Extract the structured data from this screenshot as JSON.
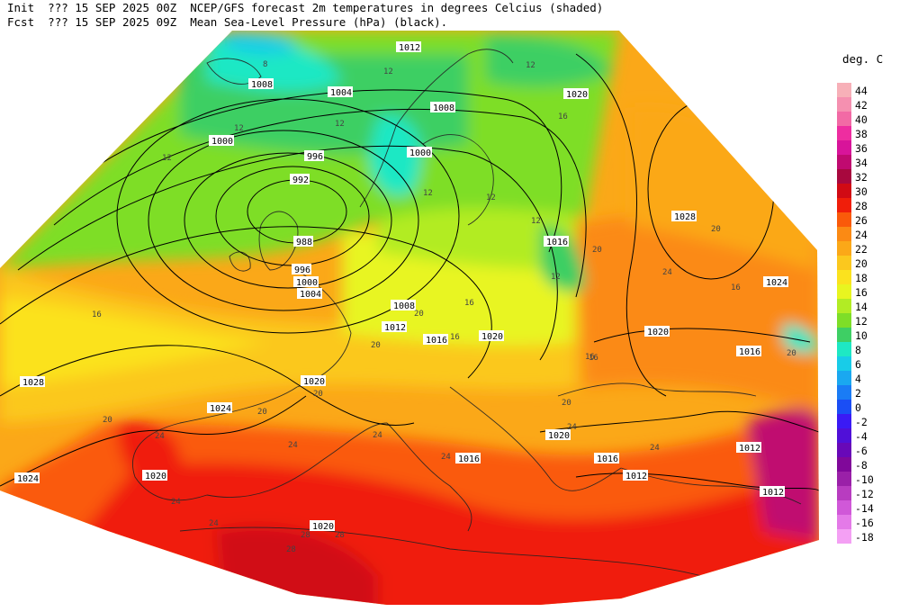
{
  "header": {
    "init_label": "Init",
    "init_value": "??? 15 SEP 2025 00Z",
    "fcst_label": "Fcst",
    "fcst_value": "??? 15 SEP 2025 09Z",
    "title_line1": "NCEP/GFS forecast 2m temperatures in degrees Celcius (shaded)",
    "title_line2": "Mean Sea-Level Pressure (hPa) (black)."
  },
  "colorbar": {
    "unit": "deg. C",
    "levels": [
      {
        "label": "44",
        "color": "#f7b0b8"
      },
      {
        "label": "42",
        "color": "#f590b0"
      },
      {
        "label": "40",
        "color": "#f26aa5"
      },
      {
        "label": "38",
        "color": "#ee2da0"
      },
      {
        "label": "36",
        "color": "#d8149a"
      },
      {
        "label": "34",
        "color": "#c00a70"
      },
      {
        "label": "32",
        "color": "#a8083e"
      },
      {
        "label": "30",
        "color": "#d10a14"
      },
      {
        "label": "28",
        "color": "#f01e0a"
      },
      {
        "label": "26",
        "color": "#fa5a0a"
      },
      {
        "label": "24",
        "color": "#fb8a14"
      },
      {
        "label": "22",
        "color": "#fba818"
      },
      {
        "label": "20",
        "color": "#fbc81e"
      },
      {
        "label": "18",
        "color": "#fbe21e"
      },
      {
        "label": "16",
        "color": "#e8f520"
      },
      {
        "label": "14",
        "color": "#b2ec24"
      },
      {
        "label": "12",
        "color": "#7ede28"
      },
      {
        "label": "10",
        "color": "#3ecf64"
      },
      {
        "label": "8",
        "color": "#1ee8c4"
      },
      {
        "label": "6",
        "color": "#18cce8"
      },
      {
        "label": "4",
        "color": "#1aa8f0"
      },
      {
        "label": "2",
        "color": "#1a7cf5"
      },
      {
        "label": "0",
        "color": "#1a4ef5"
      },
      {
        "label": "-2",
        "color": "#3a1af5"
      },
      {
        "label": "-4",
        "color": "#5010d8"
      },
      {
        "label": "-6",
        "color": "#6808b8"
      },
      {
        "label": "-8",
        "color": "#80089a"
      },
      {
        "label": "-10",
        "color": "#9a20a8"
      },
      {
        "label": "-12",
        "color": "#b83cc0"
      },
      {
        "label": "-14",
        "color": "#d058d8"
      },
      {
        "label": "-16",
        "color": "#e47ae8"
      },
      {
        "label": "-18",
        "color": "#f4a0f4"
      }
    ]
  },
  "map": {
    "isobar_labels": [
      "1012",
      "1008",
      "1004",
      "1000",
      "996",
      "992",
      "988",
      "996",
      "1000",
      "1004",
      "1008",
      "1000",
      "1020",
      "1028",
      "1016",
      "1024",
      "1020",
      "1016",
      "1028",
      "1024",
      "1020",
      "1016",
      "1012",
      "1020",
      "1016",
      "1020",
      "1012",
      "1016",
      "1012",
      "1012",
      "1020",
      "1008",
      "1024",
      "1020",
      "1024"
    ],
    "temp_labels": [
      "8",
      "12",
      "12",
      "12",
      "12",
      "12",
      "12",
      "16",
      "12",
      "12",
      "16",
      "12",
      "20",
      "24",
      "20",
      "16",
      "20",
      "16",
      "16",
      "20",
      "20",
      "16",
      "20",
      "24",
      "20",
      "24",
      "24",
      "20",
      "24",
      "24",
      "24",
      "28",
      "28",
      "28",
      "20",
      "16",
      "24",
      "24"
    ]
  }
}
